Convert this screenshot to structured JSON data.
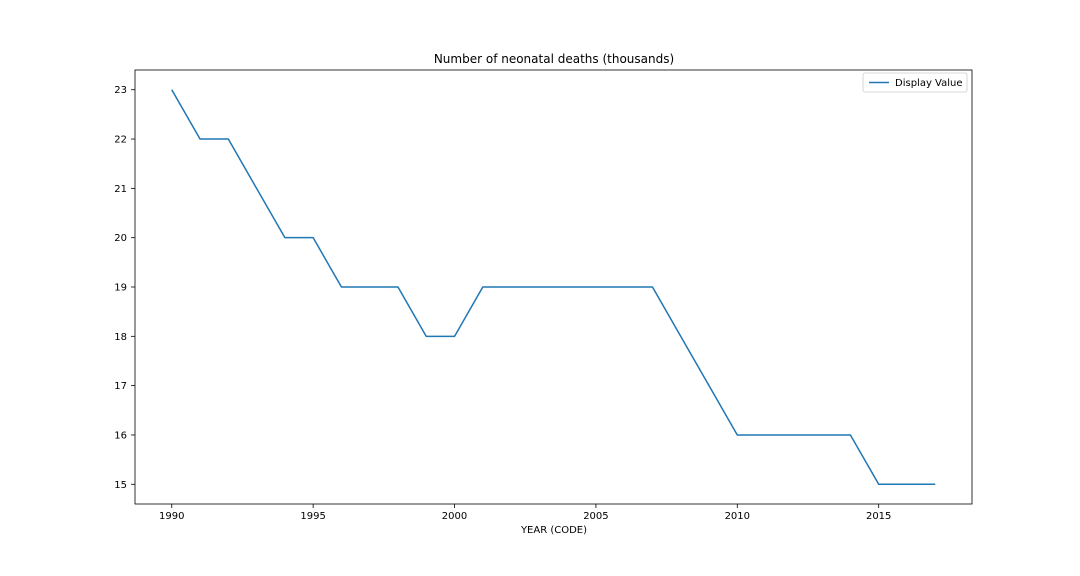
{
  "chart_data": {
    "type": "line",
    "title": "Number of neonatal deaths (thousands)",
    "xlabel": "YEAR (CODE)",
    "ylabel": "",
    "xlim": [
      1988.7,
      2018.3
    ],
    "ylim": [
      14.6,
      23.4
    ],
    "xticks": [
      1990,
      1995,
      2000,
      2005,
      2010,
      2015
    ],
    "yticks": [
      15,
      16,
      17,
      18,
      19,
      20,
      21,
      22,
      23
    ],
    "grid": false,
    "legend_position": "top-right",
    "series": [
      {
        "name": "Display Value",
        "color": "#1f77b4",
        "x": [
          1990,
          1991,
          1992,
          1993,
          1994,
          1995,
          1996,
          1997,
          1998,
          1999,
          2000,
          2001,
          2002,
          2003,
          2004,
          2005,
          2006,
          2007,
          2008,
          2009,
          2010,
          2011,
          2012,
          2013,
          2014,
          2015,
          2016,
          2017
        ],
        "values": [
          23,
          22,
          22,
          21,
          20,
          20,
          19,
          19,
          19,
          18,
          18,
          19,
          19,
          19,
          19,
          19,
          19,
          19,
          18,
          17,
          16,
          16,
          16,
          16,
          16,
          15,
          15,
          15
        ]
      }
    ]
  }
}
